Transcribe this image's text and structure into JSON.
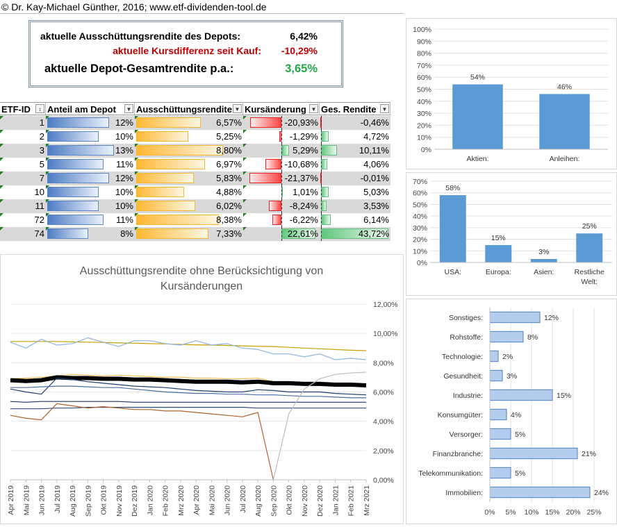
{
  "copyright": "© Dr. Kay-Michael Günther, 2016; www.etf-dividenden-tool.de",
  "summary": {
    "dividend_label": "aktuelle Ausschüttungsrendite des Depots:",
    "dividend_value": "6,42%",
    "price_label": "aktuelle Kursdifferenz seit Kauf:",
    "price_value": "-10,29%",
    "total_label": "aktuelle Depot-Gesamtrendite p.a.:",
    "total_value": "3,65%"
  },
  "table": {
    "headers": [
      "ETF-ID",
      "Anteil am Depot",
      "Ausschüttungsrendite",
      "Kursänderung",
      "Ges. Rendite"
    ],
    "rows": [
      {
        "id": "1",
        "anteil": "12%",
        "anteil_v": 12,
        "aus": "6,57%",
        "aus_v": 6.57,
        "kurs": "-20,93%",
        "kurs_v": -20.93,
        "ges": "-0,46%",
        "ges_v": -0.46
      },
      {
        "id": "2",
        "anteil": "10%",
        "anteil_v": 10,
        "aus": "5,25%",
        "aus_v": 5.25,
        "kurs": "-1,29%",
        "kurs_v": -1.29,
        "ges": "4,72%",
        "ges_v": 4.72
      },
      {
        "id": "3",
        "anteil": "13%",
        "anteil_v": 13,
        "aus": "8,80%",
        "aus_v": 8.8,
        "kurs": "5,29%",
        "kurs_v": 5.29,
        "ges": "10,11%",
        "ges_v": 10.11
      },
      {
        "id": "5",
        "anteil": "11%",
        "anteil_v": 11,
        "aus": "6,97%",
        "aus_v": 6.97,
        "kurs": "-10,68%",
        "kurs_v": -10.68,
        "ges": "4,06%",
        "ges_v": 4.06
      },
      {
        "id": "7",
        "anteil": "12%",
        "anteil_v": 12,
        "aus": "5,83%",
        "aus_v": 5.83,
        "kurs": "-21,37%",
        "kurs_v": -21.37,
        "ges": "-0,01%",
        "ges_v": -0.01
      },
      {
        "id": "10",
        "anteil": "10%",
        "anteil_v": 10,
        "aus": "4,88%",
        "aus_v": 4.88,
        "kurs": "1,01%",
        "kurs_v": 1.01,
        "ges": "5,03%",
        "ges_v": 5.03
      },
      {
        "id": "11",
        "anteil": "10%",
        "anteil_v": 10,
        "aus": "6,02%",
        "aus_v": 6.02,
        "kurs": "-8,24%",
        "kurs_v": -8.24,
        "ges": "3,53%",
        "ges_v": 3.53
      },
      {
        "id": "72",
        "anteil": "11%",
        "anteil_v": 11,
        "aus": "8,38%",
        "aus_v": 8.38,
        "kurs": "-6,22%",
        "kurs_v": -6.22,
        "ges": "6,14%",
        "ges_v": 6.14
      },
      {
        "id": "74",
        "anteil": "8%",
        "anteil_v": 8,
        "aus": "7,33%",
        "aus_v": 7.33,
        "kurs": "22,61%",
        "kurs_v": 22.61,
        "ges": "43,72%",
        "ges_v": 43.72
      }
    ]
  },
  "colors": {
    "bar_fill": "#5b9bd5",
    "positive": "#22a847",
    "negative": "#c00000",
    "header_border": "#7b8fa8"
  },
  "chart_data": [
    {
      "type": "bar",
      "categories": [
        "Aktien:",
        "Anleihen:"
      ],
      "values": [
        54,
        46
      ],
      "labels": [
        "54%",
        "46%"
      ],
      "ylim": [
        0,
        100
      ],
      "yticks": [
        "0%",
        "10%",
        "20%",
        "30%",
        "40%",
        "50%",
        "60%",
        "70%",
        "80%",
        "90%",
        "100%"
      ]
    },
    {
      "type": "bar",
      "categories": [
        "USA:",
        "Europa:",
        "Asien:",
        "Restliche Welt:"
      ],
      "values": [
        58,
        15,
        3,
        25
      ],
      "labels": [
        "58%",
        "15%",
        "3%",
        "25%"
      ],
      "ylim": [
        0,
        70
      ],
      "yticks": [
        "0%",
        "10%",
        "20%",
        "30%",
        "40%",
        "50%",
        "60%",
        "70%"
      ]
    },
    {
      "type": "bar",
      "orientation": "horizontal",
      "categories": [
        "Sonstiges:",
        "Rohstoffe:",
        "Technologie:",
        "Gesundheit:",
        "Industrie:",
        "Konsumgüter:",
        "Versorger:",
        "Finanzbranche:",
        "Telekommunikation:",
        "Immobilien:"
      ],
      "values": [
        12,
        8,
        2,
        3,
        15,
        4,
        5,
        21,
        5,
        24
      ],
      "labels": [
        "12%",
        "8%",
        "2%",
        "3%",
        "15%",
        "4%",
        "5%",
        "21%",
        "5%",
        "24%"
      ],
      "xlim": [
        0,
        25
      ],
      "xticks": [
        "0%",
        "5%",
        "10%",
        "15%",
        "20%",
        "25%"
      ]
    },
    {
      "type": "line",
      "title": "Ausschüttungsrendite ohne Berücksichtigung von Kursänderungen",
      "x": [
        "Apr 2019",
        "Mai 2019",
        "Jun 2019",
        "Jul 2019",
        "Aug 2019",
        "Sep 2019",
        "Okt 2019",
        "Nov 2019",
        "Dez 2019",
        "Jan 2020",
        "Feb 2020",
        "Mrz 2020",
        "Apr 2020",
        "Mai 2020",
        "Jun 2020",
        "Jul 2020",
        "Aug 2020",
        "Sep 2020",
        "Okt 2020",
        "Nov 2020",
        "Dez 2020",
        "Jan 2021",
        "Feb 2021",
        "Mrz 2021"
      ],
      "ylim": [
        0,
        12
      ],
      "yticks": [
        "0,00%",
        "2,00%",
        "4,00%",
        "6,00%",
        "8,00%",
        "10,00%",
        "12,00%"
      ],
      "series": [
        {
          "color": "#c8a000",
          "width": 1.2,
          "values": [
            9.45,
            9.45,
            9.45,
            9.45,
            9.42,
            9.4,
            9.38,
            9.35,
            9.33,
            9.3,
            9.28,
            9.25,
            9.22,
            9.2,
            9.18,
            9.15,
            9.12,
            9.1,
            9.05,
            9.0,
            8.95,
            8.9,
            8.85,
            8.82
          ]
        },
        {
          "color": "#8db4e2",
          "width": 1.2,
          "values": [
            9.4,
            9.0,
            9.6,
            9.2,
            9.3,
            9.7,
            9.4,
            9.1,
            9.5,
            9.5,
            9.3,
            9.2,
            9.5,
            9.2,
            9.3,
            9.0,
            8.9,
            8.6,
            8.6,
            8.4,
            8.6,
            8.2,
            8.3,
            8.2
          ]
        },
        {
          "color": "#f2c060",
          "width": 1.2,
          "values": [
            6.9,
            6.95,
            7.0,
            7.1,
            7.2,
            7.15,
            7.1,
            7.15,
            7.1,
            7.05,
            7.0,
            7.0,
            6.95,
            6.95,
            6.9,
            6.9,
            6.95,
            6.7,
            6.7,
            6.6,
            6.6,
            6.55,
            6.5,
            6.5
          ]
        },
        {
          "color": "#000000",
          "width": 6,
          "values": [
            6.8,
            6.75,
            6.8,
            7.0,
            6.95,
            6.95,
            6.9,
            6.9,
            6.85,
            6.85,
            6.8,
            6.75,
            6.7,
            6.7,
            6.7,
            6.65,
            6.7,
            6.6,
            6.6,
            6.55,
            6.55,
            6.5,
            6.5,
            6.45
          ]
        },
        {
          "color": "#1f3f6e",
          "width": 1.2,
          "values": [
            6.2,
            6.0,
            5.85,
            6.95,
            6.85,
            6.7,
            6.6,
            6.5,
            6.4,
            6.35,
            6.3,
            6.2,
            6.1,
            6.05,
            6.0,
            6.0,
            6.15,
            6.1,
            6.0,
            6.0,
            6.0,
            5.9,
            5.85,
            5.8
          ]
        },
        {
          "color": "#4a6da8",
          "width": 1.2,
          "values": [
            6.3,
            6.3,
            6.35,
            6.4,
            6.4,
            6.35,
            6.3,
            6.3,
            6.2,
            6.1,
            6.0,
            5.95,
            5.9,
            5.9,
            5.85,
            5.85,
            5.8,
            5.8,
            5.75,
            5.7,
            5.7,
            5.65,
            5.6,
            5.6
          ]
        },
        {
          "color": "#203864",
          "width": 1.2,
          "values": [
            5.35,
            5.3,
            5.35,
            5.35,
            5.35,
            5.35,
            5.35,
            5.35,
            5.3,
            5.3,
            5.3,
            5.3,
            5.3,
            5.3,
            5.3,
            5.3,
            5.3,
            5.3,
            5.3,
            5.3,
            5.3,
            5.3,
            5.3,
            5.3
          ]
        },
        {
          "color": "#2e4d7f",
          "width": 1.2,
          "values": [
            4.85,
            4.85,
            4.85,
            4.9,
            4.9,
            4.95,
            4.95,
            4.95,
            4.95,
            4.95,
            4.95,
            4.95,
            4.95,
            4.95,
            4.95,
            4.95,
            4.9,
            4.9,
            4.9,
            4.9,
            4.9,
            4.9,
            4.9,
            4.9
          ]
        },
        {
          "color": "#b5602a",
          "width": 1.2,
          "values": [
            4.4,
            4.2,
            4.1,
            5.2,
            5.05,
            4.9,
            5.0,
            4.9,
            4.8,
            4.8,
            4.7,
            4.7,
            4.6,
            4.5,
            4.4,
            4.3,
            4.6,
            0.0,
            null,
            null,
            null,
            null,
            null,
            null
          ]
        },
        {
          "color": "#bfbfbf",
          "width": 1.2,
          "values": [
            null,
            null,
            null,
            null,
            null,
            null,
            null,
            null,
            null,
            null,
            null,
            null,
            null,
            null,
            null,
            null,
            null,
            0.0,
            4.5,
            6.2,
            6.9,
            7.2,
            7.3,
            7.35
          ]
        }
      ]
    }
  ]
}
